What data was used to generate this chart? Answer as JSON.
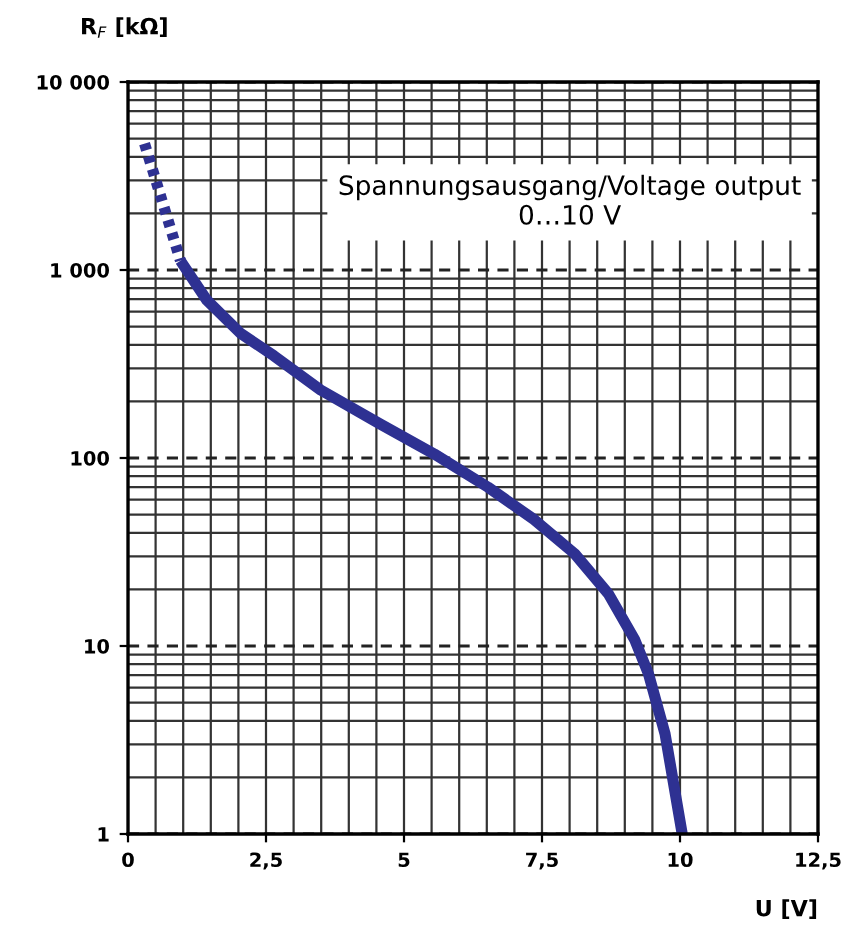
{
  "chart_data": {
    "type": "line",
    "xlabel": "U [V]",
    "ylabel": "R$_{F}$ [kΩ]",
    "log": "y",
    "grid": true,
    "xlim": [
      0,
      12.5
    ],
    "ylim": [
      1,
      10000
    ],
    "xticks": [
      0,
      {
        "value": 2.5,
        "label": "2,5"
      },
      5,
      {
        "value": 7.5,
        "label": "7,5"
      },
      10,
      {
        "value": 12.5,
        "label": "12,5"
      }
    ],
    "yticks": [
      1,
      10,
      100,
      {
        "value": 1000,
        "label": "1 000"
      },
      {
        "value": 10000,
        "label": "10 000"
      }
    ],
    "annotations": [
      "Spannungsausgang/Voltage output\n0…10 V"
    ],
    "series": [
      {
        "color": "#2e3192",
        "line_style": "dotted",
        "x": [
          0.3,
          0.95
        ],
        "values": [
          4700,
          1120
        ]
      },
      {
        "color": "#2e3192",
        "line_style": "solid",
        "x": [
          0.95,
          1.43,
          2.04,
          2.64,
          3.49,
          4.58,
          5.55,
          6.52,
          7.36,
          8.09,
          8.7,
          9.18,
          9.43,
          9.73,
          10.04
        ],
        "values": [
          1120,
          690,
          460,
          350,
          230,
          151,
          105,
          70,
          47,
          31,
          19,
          10.8,
          7.1,
          3.4,
          1
        ]
      }
    ]
  }
}
